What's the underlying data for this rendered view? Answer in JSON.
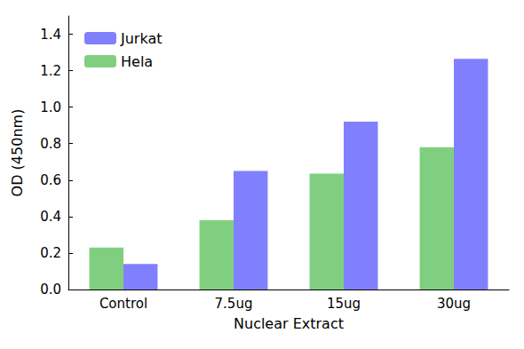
{
  "chart_data": {
    "type": "bar",
    "x_label": "Nuclear Extract",
    "y_label": "OD (450nm)",
    "categories": [
      "Control",
      "7.5ug",
      "15ug",
      "30ug"
    ],
    "series": [
      {
        "name": "Hela",
        "color": "#80cf80",
        "values": [
          0.23,
          0.38,
          0.635,
          0.78
        ]
      },
      {
        "name": "Jurkat",
        "color": "#8080ff",
        "values": [
          0.14,
          0.65,
          0.92,
          1.265
        ]
      }
    ],
    "ylim": [
      0,
      1.5
    ],
    "yticks": [
      {
        "value": 0,
        "label": "0.0"
      },
      {
        "value": 0.2,
        "label": "0.2"
      },
      {
        "value": 0.4,
        "label": "0.4"
      },
      {
        "value": 0.6,
        "label": "0.6"
      },
      {
        "value": 0.8,
        "label": "0.8"
      },
      {
        "value": 1.0,
        "label": "1.0"
      },
      {
        "value": 1.2,
        "label": "1.2"
      },
      {
        "value": 1.4,
        "label": "1.4"
      }
    ],
    "grid": false,
    "legend": "upper left"
  }
}
